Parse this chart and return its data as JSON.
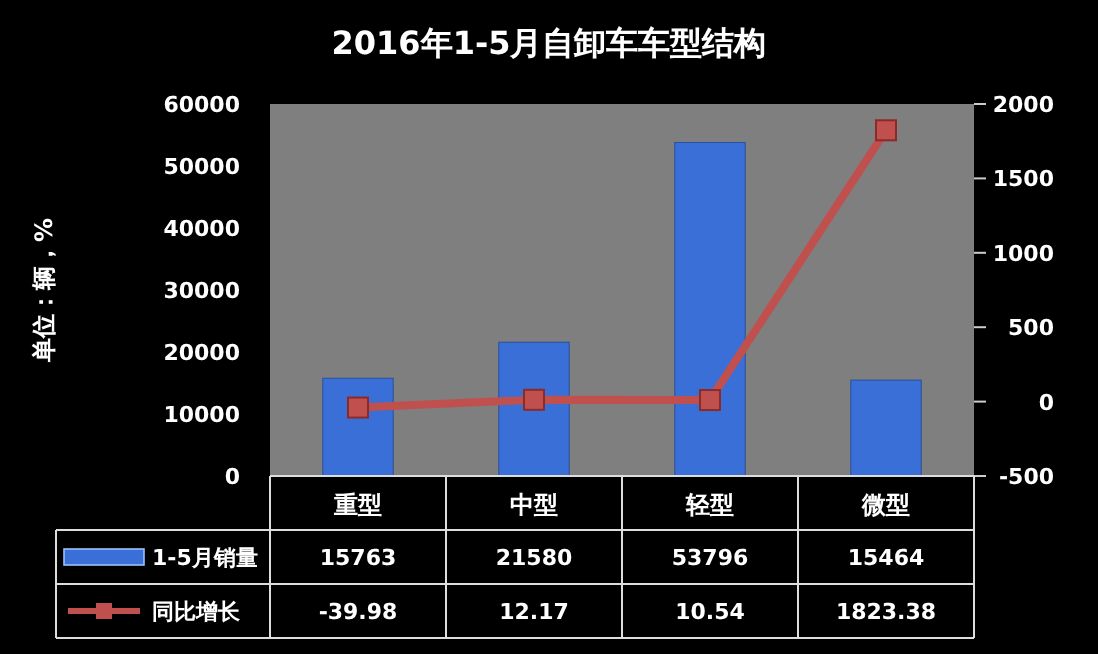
{
  "chart_data": {
    "type": "bar",
    "title": "2016年1-5月自卸车车型结构",
    "ylabel": "单位：辆，%",
    "categories": [
      "重型",
      "中型",
      "轻型",
      "微型"
    ],
    "series": [
      {
        "name": "1-5月销量",
        "color": "#3a6fd8",
        "values": [
          15763,
          21580,
          53796,
          15464
        ]
      },
      {
        "name": "同比增长",
        "type": "line",
        "axis": "y2",
        "color": "#c0504d",
        "values": [
          -39.98,
          12.17,
          10.54,
          1823.38
        ]
      }
    ],
    "ylim": [
      0,
      60000
    ],
    "yticks": [
      0,
      10000,
      20000,
      30000,
      40000,
      50000,
      60000
    ],
    "y2lim": [
      -500,
      2000
    ],
    "y2ticks": [
      -500,
      0,
      500,
      1000,
      1500,
      2000
    ],
    "data_labels": true,
    "legend": "bottom left",
    "marker": "square"
  }
}
